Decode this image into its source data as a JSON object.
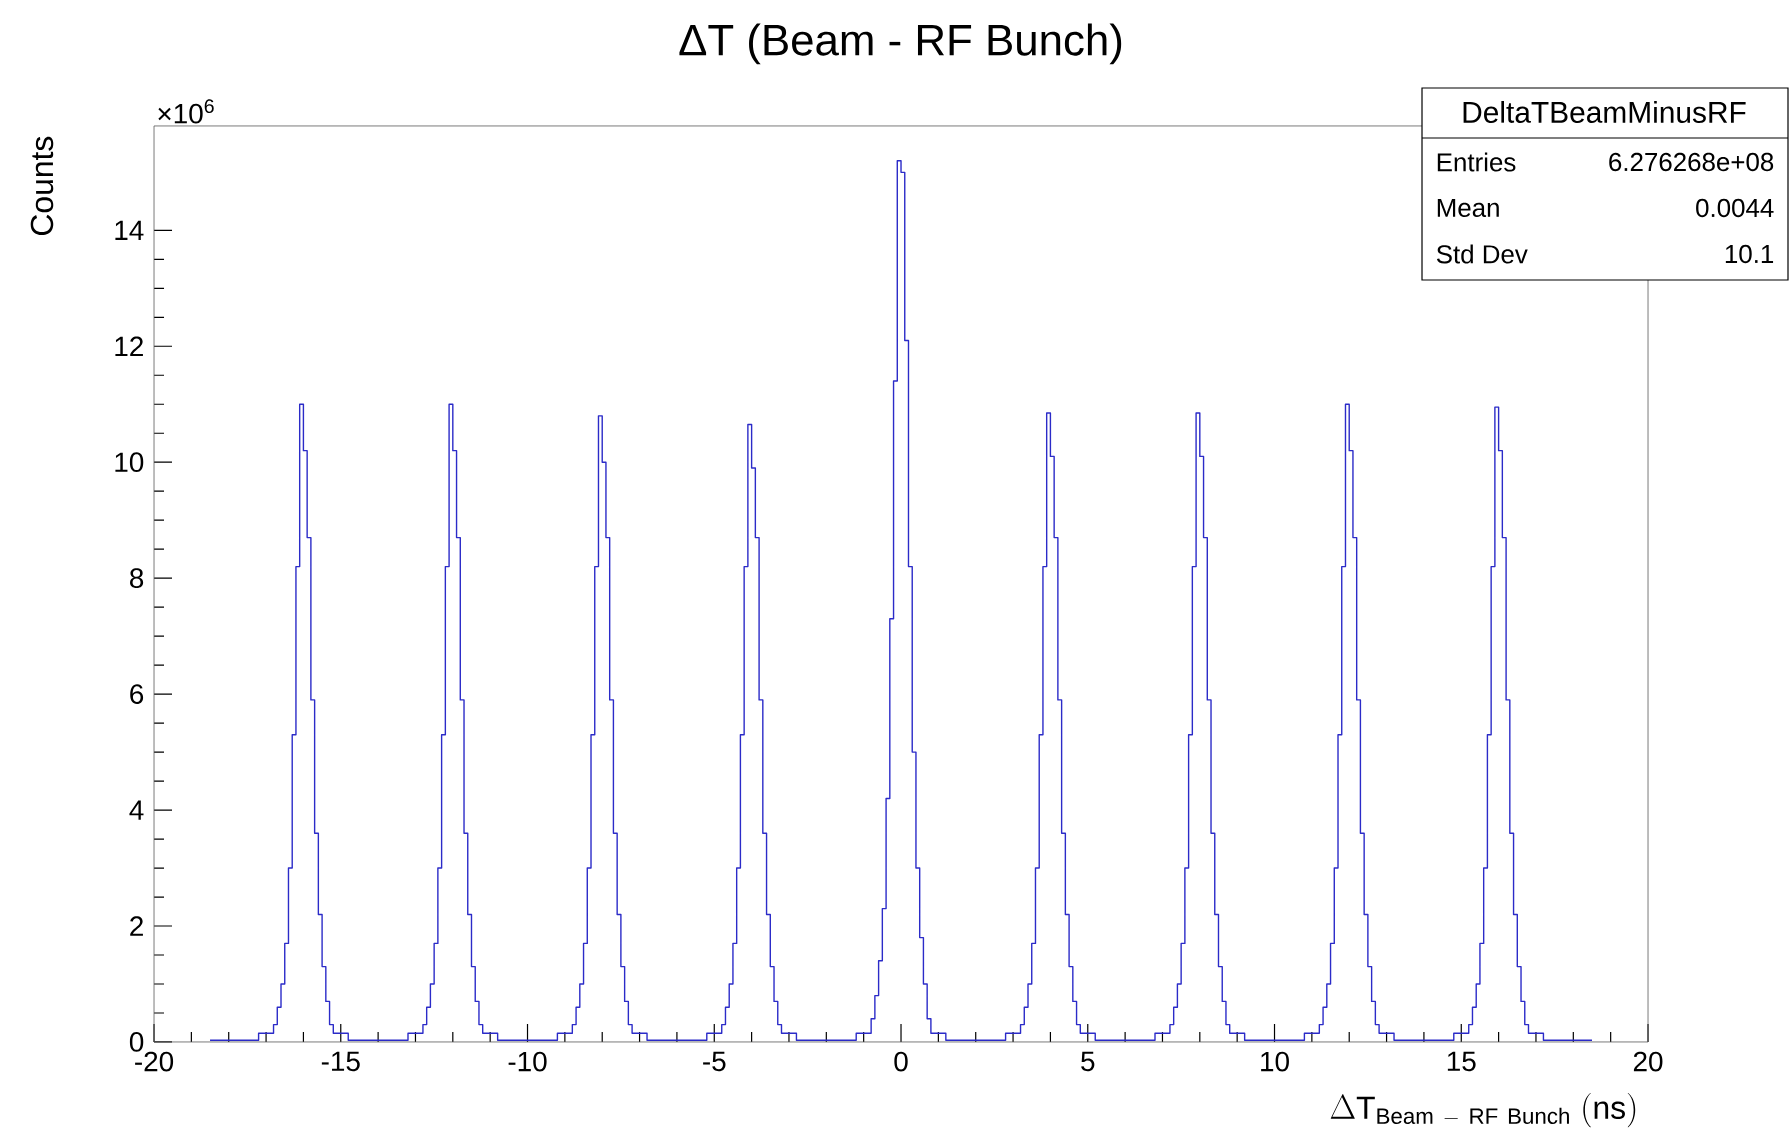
{
  "chart_data": {
    "type": "histogram",
    "title": "ΔT (Beam - RF Bunch)",
    "xlabel": "\\Delta \\mathrm{T}_{\\mathrm{Beam\\ -\\ RF\\ Bunch}}\\ (\\mathrm{ns})",
    "ylabel": "Counts",
    "annotations": [
      "×10$^{6}$",
      "DeltaTBeamMinusRF",
      "Entries",
      "6.276268e+08",
      "Mean",
      "0.0044",
      "Std Dev",
      "10.1"
    ],
    "color": "#2b2bc8",
    "xlim": [
      -20,
      20
    ],
    "xticks": [
      -20,
      -15,
      -10,
      -5,
      0,
      5,
      10,
      15,
      20
    ],
    "ylim": [
      0,
      15.8
    ],
    "yticks": [
      0,
      2,
      4,
      6,
      8,
      10,
      12,
      14
    ],
    "bins": [
      -18.5,
      -17.2,
      -16.8,
      -16.7,
      -16.6,
      -16.5,
      -16.4,
      -16.3,
      -16.2,
      -16.1,
      -16,
      -15.9,
      -15.8,
      -15.7,
      -15.6,
      -15.5,
      -15.4,
      -15.3,
      -15.2,
      -14.8,
      -14,
      -13.2,
      -12.8,
      -12.7,
      -12.6,
      -12.5,
      -12.4,
      -12.3,
      -12.2,
      -12.1,
      -12,
      -11.9,
      -11.8,
      -11.7,
      -11.6,
      -11.5,
      -11.4,
      -11.3,
      -11.2,
      -10.8,
      -10,
      -9.2,
      -8.8,
      -8.7,
      -8.6,
      -8.5,
      -8.4,
      -8.3,
      -8.2,
      -8.1,
      -8,
      -7.9,
      -7.8,
      -7.7,
      -7.6,
      -7.5,
      -7.4,
      -7.3,
      -7.2,
      -6.8,
      -6,
      -5.2,
      -4.8,
      -4.7,
      -4.6,
      -4.5,
      -4.4,
      -4.3,
      -4.2,
      -4.1,
      -4,
      -3.9,
      -3.8,
      -3.7,
      -3.6,
      -3.5,
      -3.4,
      -3.3,
      -3.2,
      -2.8,
      -2,
      -1.2,
      -0.8,
      -0.7,
      -0.6,
      -0.5,
      -0.4,
      -0.3,
      -0.2,
      -0.1,
      0,
      0.1,
      0.2,
      0.3,
      0.4,
      0.5,
      0.6,
      0.7,
      0.8,
      1.2,
      2,
      2.8,
      3.2,
      3.3,
      3.4,
      3.5,
      3.6,
      3.7,
      3.8,
      3.9,
      4,
      4.1,
      4.2,
      4.3,
      4.4,
      4.5,
      4.6,
      4.7,
      4.8,
      5.2,
      6,
      6.8,
      7.2,
      7.3,
      7.4,
      7.5,
      7.6,
      7.7,
      7.8,
      7.9,
      8,
      8.1,
      8.2,
      8.3,
      8.4,
      8.5,
      8.6,
      8.7,
      8.8,
      9.2,
      10,
      10.8,
      11.2,
      11.3,
      11.4,
      11.5,
      11.6,
      11.7,
      11.8,
      11.9,
      12,
      12.1,
      12.2,
      12.3,
      12.4,
      12.5,
      12.6,
      12.7,
      12.8,
      13.2,
      14,
      14.8,
      15.2,
      15.3,
      15.4,
      15.5,
      15.6,
      15.7,
      15.8,
      15.9,
      16,
      16.1,
      16.2,
      16.3,
      16.4,
      16.5,
      16.6,
      16.7,
      16.8,
      17.2,
      18.5
    ],
    "values": [
      0.03,
      0.15,
      0.3,
      0.6,
      1.0,
      1.7,
      3.0,
      5.3,
      8.2,
      11.0,
      10.2,
      8.7,
      5.9,
      3.6,
      2.2,
      1.3,
      0.7,
      0.3,
      0.15,
      0.03,
      0.03,
      0.15,
      0.3,
      0.6,
      1.0,
      1.7,
      3.0,
      5.3,
      8.2,
      11.0,
      10.2,
      8.7,
      5.9,
      3.6,
      2.2,
      1.3,
      0.7,
      0.3,
      0.15,
      0.03,
      0.03,
      0.15,
      0.3,
      0.6,
      1.0,
      1.7,
      3.0,
      5.3,
      8.2,
      10.8,
      10.0,
      8.7,
      5.9,
      3.6,
      2.2,
      1.3,
      0.7,
      0.3,
      0.15,
      0.03,
      0.03,
      0.15,
      0.3,
      0.6,
      1.0,
      1.7,
      3.0,
      5.3,
      8.2,
      10.65,
      9.9,
      8.7,
      5.9,
      3.6,
      2.2,
      1.3,
      0.7,
      0.3,
      0.15,
      0.03,
      0.03,
      0.15,
      0.4,
      0.8,
      1.4,
      2.3,
      4.2,
      7.3,
      11.4,
      15.2,
      15.0,
      12.1,
      8.2,
      5.0,
      3.0,
      1.8,
      1.0,
      0.4,
      0.15,
      0.03,
      0.03,
      0.15,
      0.3,
      0.6,
      1.0,
      1.7,
      3.0,
      5.3,
      8.2,
      10.85,
      10.1,
      8.7,
      5.9,
      3.6,
      2.2,
      1.3,
      0.7,
      0.3,
      0.15,
      0.03,
      0.03,
      0.15,
      0.3,
      0.6,
      1.0,
      1.7,
      3.0,
      5.3,
      8.2,
      10.85,
      10.1,
      8.7,
      5.9,
      3.6,
      2.2,
      1.3,
      0.7,
      0.3,
      0.15,
      0.03,
      0.03,
      0.15,
      0.3,
      0.6,
      1.0,
      1.7,
      3.0,
      5.3,
      8.2,
      11.0,
      10.2,
      8.7,
      5.9,
      3.6,
      2.2,
      1.3,
      0.7,
      0.3,
      0.15,
      0.03,
      0.03,
      0.15,
      0.3,
      0.6,
      1.0,
      1.7,
      3.0,
      5.3,
      8.2,
      10.95,
      10.2,
      8.7,
      5.9,
      3.6,
      2.2,
      1.3,
      0.7,
      0.3,
      0.15,
      0.03
    ]
  }
}
